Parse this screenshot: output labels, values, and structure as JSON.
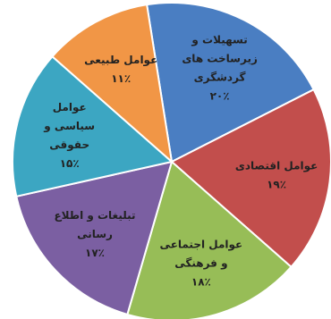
{
  "chart_data": {
    "type": "pie",
    "title": "",
    "slices": [
      {
        "label_lines": [
          "تسهیلات و",
          "زیرساخت های",
          "گردشگری",
          "۲۰٪"
        ],
        "value": 20,
        "color": "#4a7ec2"
      },
      {
        "label_lines": [
          "عوامل اقتصادی",
          "۱۹٪"
        ],
        "value": 19,
        "color": "#c24e4c"
      },
      {
        "label_lines": [
          "عوامل اجتماعی",
          "و فرهنگی",
          "۱۸٪"
        ],
        "value": 18,
        "color": "#97bd57"
      },
      {
        "label_lines": [
          "تبلیغات و اطلاع",
          "رسانی",
          "۱۷٪"
        ],
        "value": 17,
        "color": "#7b5fa2"
      },
      {
        "label_lines": [
          "عوامل",
          "سیاسی و",
          "حقوقی",
          "۱۵٪"
        ],
        "value": 15,
        "color": "#3ca6c2"
      },
      {
        "label_lines": [
          "عوامل طبیعی",
          "۱۱٪"
        ],
        "value": 11,
        "color": "#f19646"
      }
    ]
  }
}
